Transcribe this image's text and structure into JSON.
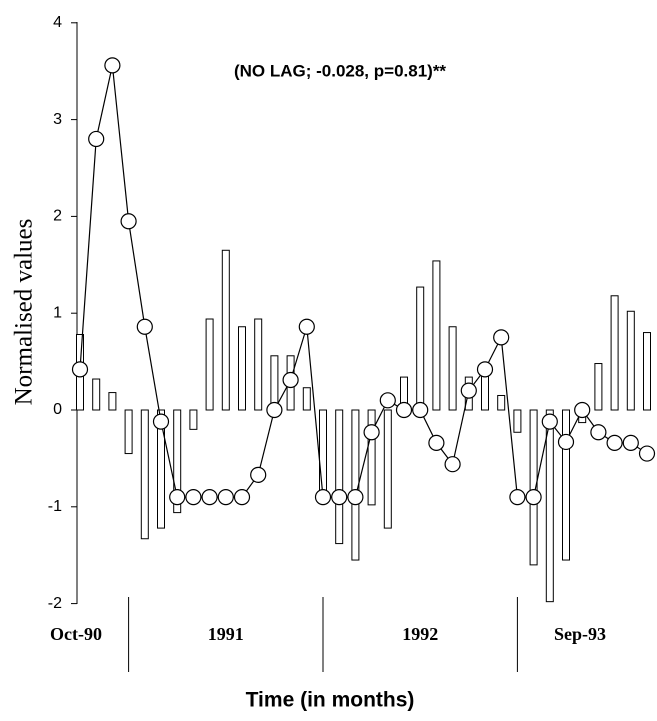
{
  "chart_data": {
    "type": "combo",
    "annotation": "(NO LAG; -0.028, p=0.81)**",
    "y_label": "Normalised values",
    "x_label": "Time (in months)",
    "ylim": [
      -2,
      4
    ],
    "yticks": [
      -2,
      -1,
      0,
      1,
      2,
      3,
      4
    ],
    "categories": [
      null,
      null,
      null,
      null,
      null,
      null,
      null,
      null,
      null,
      null,
      null,
      null,
      null,
      null,
      null,
      null,
      null,
      null,
      null,
      null,
      null,
      null,
      null,
      null,
      null,
      null,
      null,
      null,
      null,
      null,
      null,
      null,
      null,
      null,
      null,
      null
    ],
    "x_groups": [
      {
        "label": "Oct-90",
        "count": 3
      },
      {
        "label": "1991",
        "count": 12
      },
      {
        "label": "1992",
        "count": 12
      },
      {
        "label": "Sep-93",
        "count": 9
      }
    ],
    "series": [
      {
        "type": "bar",
        "color": "#ffffff",
        "values": [
          0.78,
          0.32,
          0.18,
          -0.45,
          -1.33,
          -1.22,
          -1.06,
          -0.2,
          0.94,
          1.65,
          0.86,
          0.94,
          0.56,
          0.56,
          0.23,
          -0.9,
          -1.38,
          -1.55,
          -0.98,
          -1.22,
          0.34,
          1.27,
          1.54,
          0.86,
          0.34,
          0.47,
          0.15,
          -0.23,
          -1.6,
          -1.98,
          -1.55,
          -0.13,
          0.48,
          1.18,
          1.02,
          0.8
        ]
      },
      {
        "type": "line",
        "color": "#000000",
        "values": [
          0.42,
          2.8,
          3.56,
          1.95,
          0.86,
          -0.12,
          -0.9,
          -0.9,
          -0.9,
          -0.9,
          -0.9,
          -0.67,
          0,
          0.31,
          0.86,
          -0.9,
          -0.9,
          -0.9,
          -0.23,
          0.1,
          0,
          0,
          -0.34,
          -0.56,
          0.2,
          0.42,
          0.75,
          -0.9,
          -0.9,
          -0.12,
          -0.33,
          0,
          -0.23,
          -0.34,
          -0.34,
          -0.45
        ]
      }
    ]
  }
}
